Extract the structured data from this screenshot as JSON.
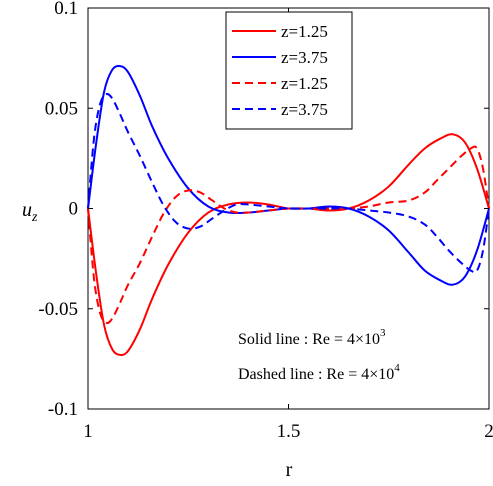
{
  "chart_data": {
    "type": "line",
    "xlabel": "r",
    "ylabel_base": "u",
    "ylabel_sub": "z",
    "xlim": [
      1,
      2
    ],
    "ylim": [
      -0.1,
      0.1
    ],
    "xticks": [
      1,
      1.5,
      2
    ],
    "xtick_labels": [
      "1",
      "1.5",
      "2"
    ],
    "yticks": [
      -0.1,
      -0.05,
      0,
      0.05,
      0.1
    ],
    "ytick_labels": [
      "-0.1",
      "-0.05",
      "0",
      "0.05",
      "0.1"
    ],
    "grid": false,
    "legend_placement": "top-center",
    "series": [
      {
        "name": "z=1.25",
        "color": "#ff0000",
        "style": "solid",
        "x": [
          1.0,
          1.02,
          1.04,
          1.06,
          1.08,
          1.1,
          1.13,
          1.16,
          1.2,
          1.25,
          1.3,
          1.35,
          1.4,
          1.45,
          1.5,
          1.55,
          1.6,
          1.65,
          1.7,
          1.75,
          1.8,
          1.84,
          1.88,
          1.91,
          1.94,
          1.97,
          2.0
        ],
        "y": [
          0.0,
          -0.032,
          -0.058,
          -0.07,
          -0.073,
          -0.071,
          -0.06,
          -0.045,
          -0.028,
          -0.012,
          -0.002,
          0.002,
          0.003,
          0.002,
          0.0,
          0.0,
          -0.001,
          0.0,
          0.004,
          0.011,
          0.022,
          0.03,
          0.035,
          0.037,
          0.033,
          0.02,
          0.0
        ]
      },
      {
        "name": "z=3.75",
        "color": "#0000ff",
        "style": "solid",
        "x": [
          1.0,
          1.02,
          1.04,
          1.06,
          1.08,
          1.1,
          1.13,
          1.16,
          1.2,
          1.25,
          1.3,
          1.35,
          1.4,
          1.45,
          1.5,
          1.55,
          1.6,
          1.65,
          1.7,
          1.75,
          1.8,
          1.84,
          1.88,
          1.91,
          1.94,
          1.97,
          2.0
        ],
        "y": [
          0.0,
          0.032,
          0.058,
          0.069,
          0.071,
          0.068,
          0.056,
          0.041,
          0.025,
          0.01,
          0.001,
          -0.002,
          -0.002,
          -0.001,
          0.0,
          0.0,
          0.001,
          0.0,
          -0.004,
          -0.011,
          -0.022,
          -0.031,
          -0.036,
          -0.038,
          -0.034,
          -0.021,
          0.0
        ]
      },
      {
        "name": "z=1.25",
        "color": "#ff0000",
        "style": "dashed",
        "x": [
          1.0,
          1.015,
          1.03,
          1.045,
          1.06,
          1.08,
          1.1,
          1.13,
          1.16,
          1.19,
          1.22,
          1.25,
          1.28,
          1.31,
          1.34,
          1.37,
          1.4,
          1.45,
          1.5,
          1.55,
          1.6,
          1.65,
          1.7,
          1.75,
          1.8,
          1.84,
          1.87,
          1.9,
          1.93,
          1.955,
          1.97,
          1.985,
          2.0
        ],
        "y": [
          0.0,
          -0.035,
          -0.052,
          -0.057,
          -0.055,
          -0.047,
          -0.038,
          -0.027,
          -0.014,
          -0.002,
          0.006,
          0.009,
          0.008,
          0.004,
          0.0,
          -0.002,
          -0.002,
          -0.001,
          0.0,
          0.0,
          0.0,
          0.0,
          0.001,
          0.003,
          0.004,
          0.008,
          0.014,
          0.02,
          0.026,
          0.03,
          0.03,
          0.02,
          0.0
        ]
      },
      {
        "name": "z=3.75",
        "color": "#0000ff",
        "style": "dashed",
        "x": [
          1.0,
          1.015,
          1.03,
          1.045,
          1.06,
          1.08,
          1.1,
          1.13,
          1.16,
          1.19,
          1.22,
          1.25,
          1.28,
          1.31,
          1.34,
          1.37,
          1.4,
          1.45,
          1.5,
          1.55,
          1.6,
          1.65,
          1.7,
          1.75,
          1.8,
          1.84,
          1.87,
          1.9,
          1.93,
          1.955,
          1.97,
          1.985,
          2.0
        ],
        "y": [
          0.0,
          0.035,
          0.052,
          0.057,
          0.055,
          0.047,
          0.038,
          0.026,
          0.013,
          0.001,
          -0.007,
          -0.01,
          -0.009,
          -0.005,
          -0.001,
          0.002,
          0.002,
          0.001,
          0.0,
          0.0,
          0.0,
          0.0,
          -0.001,
          -0.002,
          -0.004,
          -0.008,
          -0.014,
          -0.021,
          -0.027,
          -0.031,
          -0.031,
          -0.021,
          0.0
        ]
      }
    ],
    "annotations": [
      {
        "text": "Solid line :    Re = 4×10",
        "sup": "3"
      },
      {
        "text": "Dashed line : Re = 4×10",
        "sup": "4"
      }
    ]
  }
}
